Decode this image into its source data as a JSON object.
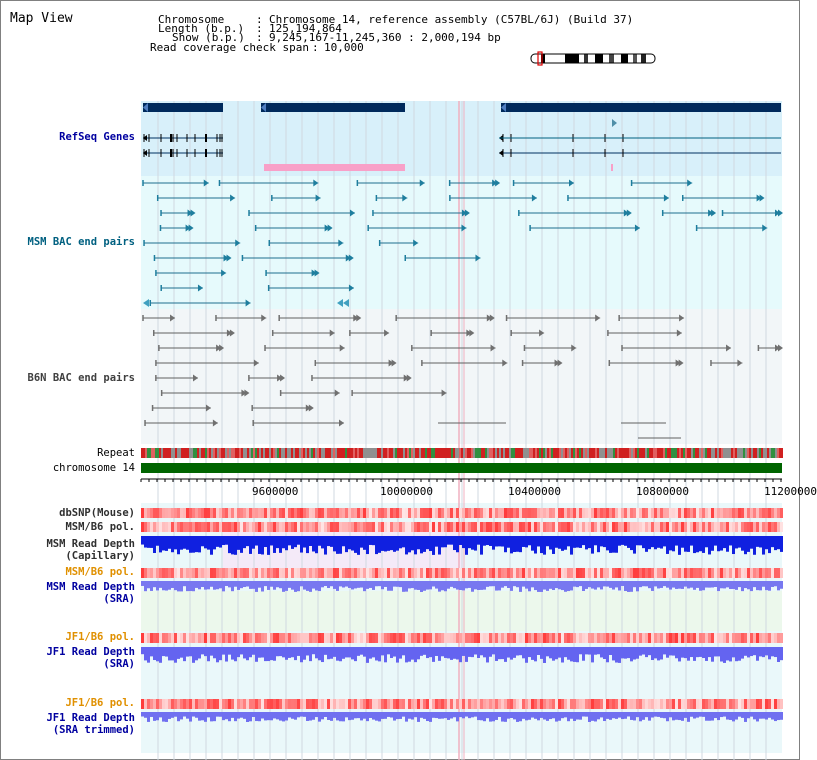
{
  "app_title": "Map View",
  "info": {
    "chromosome_label": "Chromosome",
    "chromosome_value": "Chromosome 14, reference assembly (C57BL/6J) (Build 37)",
    "length_label": "Length (b.p.)",
    "length_value": "125,194,864",
    "show_label": "Show (b.p.)",
    "show_value": "9,245,167-11,245,360 : 2,000,194 bp",
    "coverage_label": "Read coverage check span",
    "coverage_value": "10,000"
  },
  "tracks": {
    "refseq": "RefSeq Genes",
    "msm_bac": "MSM BAC end pairs",
    "b6n_bac": "B6N BAC end pairs",
    "repeat": "Repeat",
    "chromosome": "chromosome 14",
    "dbsnp": "dbSNP(Mouse)",
    "msm_b6_pol": "MSM/B6 pol.",
    "msm_depth_cap_1": "MSM Read Depth",
    "msm_depth_cap_2": "(Capillary)",
    "msm_b6_pol_sra": "MSM/B6 pol.",
    "msm_depth_sra_1": "MSM Read Depth",
    "msm_depth_sra_2": "(SRA)",
    "jf1_b6_pol": "JF1/B6 pol.",
    "jf1_depth_sra_1": "JF1 Read Depth",
    "jf1_depth_sra_2": "(SRA)",
    "jf1_b6_pol_trim": "JF1/B6 pol.",
    "jf1_depth_trim_1": "JF1 Read Depth",
    "jf1_depth_trim_2": "(SRA trimmed)"
  },
  "axis": {
    "ticks": [
      "9600000",
      "10000000",
      "10400000",
      "10800000",
      "11200000"
    ]
  },
  "colors": {
    "label_blue": "#0000a0",
    "label_teal": "#006080",
    "label_orange": "#e09000",
    "gray_label": "#303030"
  }
}
